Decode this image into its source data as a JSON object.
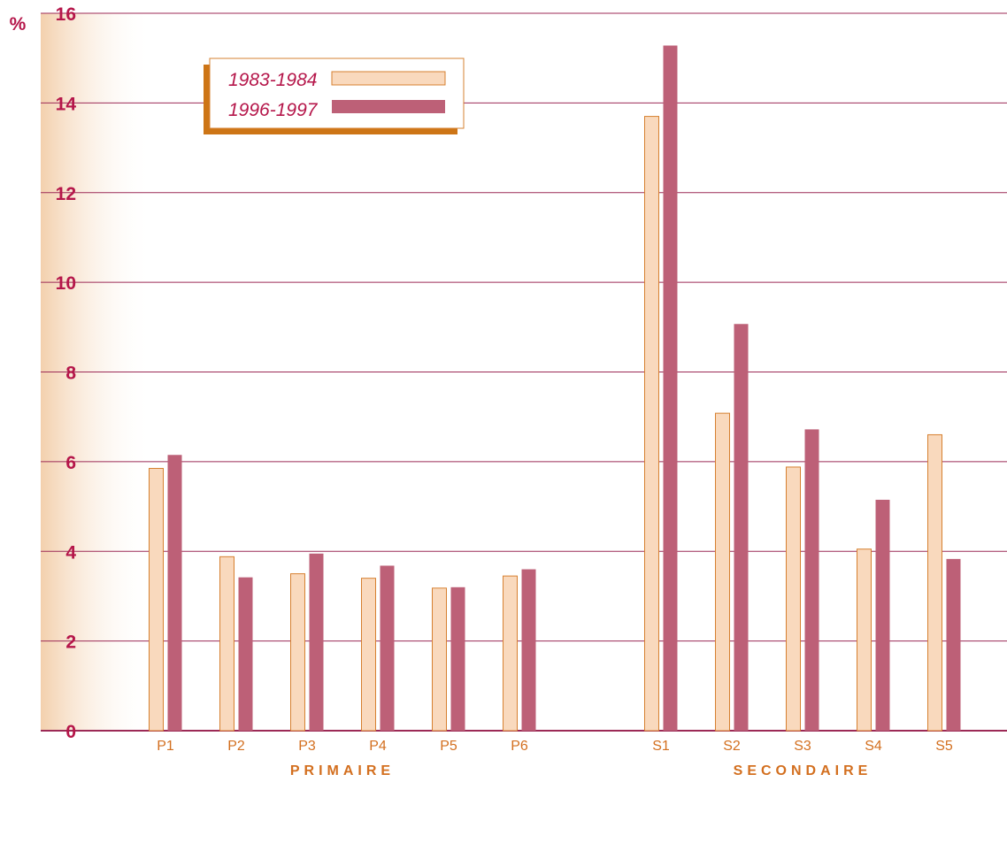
{
  "chart_data": {
    "type": "bar",
    "unit_label": "%",
    "ylim": [
      0,
      16
    ],
    "yticks": [
      0,
      2,
      4,
      6,
      8,
      10,
      12,
      14,
      16
    ],
    "grid": true,
    "legend_position": "top-left",
    "categories": [
      "P1",
      "P2",
      "P3",
      "P4",
      "P5",
      "P6",
      "S1",
      "S2",
      "S3",
      "S4",
      "S5"
    ],
    "groups": [
      {
        "label": "PRIMAIRE",
        "categories": [
          "P1",
          "P2",
          "P3",
          "P4",
          "P5",
          "P6"
        ]
      },
      {
        "label": "SECONDAIRE",
        "categories": [
          "S1",
          "S2",
          "S3",
          "S4",
          "S5"
        ]
      }
    ],
    "series": [
      {
        "name": "1983-1984",
        "values": [
          5.85,
          3.88,
          3.5,
          3.4,
          3.18,
          3.45,
          13.7,
          7.08,
          5.88,
          4.05,
          6.6
        ]
      },
      {
        "name": "1996-1997",
        "values": [
          6.15,
          3.42,
          3.95,
          3.68,
          3.2,
          3.6,
          15.28,
          9.07,
          6.72,
          5.15,
          3.83
        ]
      }
    ]
  },
  "colors": {
    "axis_text": "#b5164a",
    "category_text": "#d36f1f",
    "gridline": "#9c2a56",
    "series_1983_fill": "#f9d9bd",
    "series_1983_stroke": "#d68030",
    "series_1996_fill": "#bd6077",
    "legend_shadow": "#cd7516",
    "band_start": "#f3d0ad",
    "band_end": "#ffffff"
  }
}
